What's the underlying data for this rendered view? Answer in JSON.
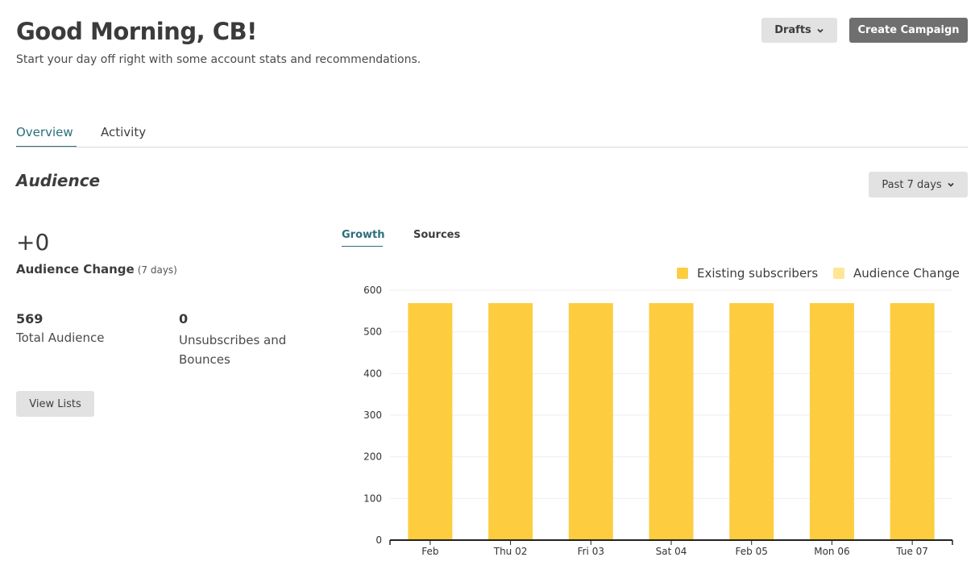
{
  "header": {
    "greeting": "Good Morning, CB!",
    "subtitle": "Start your day off right with some account stats and recommendations.",
    "drafts_label": "Drafts",
    "create_label": "Create Campaign"
  },
  "tabs": [
    {
      "label": "Overview",
      "active": true
    },
    {
      "label": "Activity",
      "active": false
    }
  ],
  "audience": {
    "section_title": "Audience",
    "range_label": "Past 7 days",
    "change_value": "+0",
    "change_label": "Audience Change",
    "change_period": "(7 days)",
    "total_value": "569",
    "total_label": "Total Audience",
    "unsub_value": "0",
    "unsub_label": "Unsubscribes and Bounces",
    "view_lists_label": "View Lists"
  },
  "chart_tabs": [
    {
      "label": "Growth",
      "active": true
    },
    {
      "label": "Sources",
      "active": false
    }
  ],
  "colors": {
    "existing": "#fdcd3f",
    "change": "#ffe696",
    "accent": "#2a6f7a"
  },
  "chart_data": {
    "type": "bar",
    "stacked": true,
    "categories": [
      "Feb",
      "Thu 02",
      "Fri 03",
      "Sat 04",
      "Feb 05",
      "Mon 06",
      "Tue 07"
    ],
    "series": [
      {
        "name": "Existing subscribers",
        "values": [
          569,
          569,
          569,
          569,
          569,
          569,
          569
        ]
      },
      {
        "name": "Audience Change",
        "values": [
          0,
          0,
          0,
          0,
          0,
          0,
          0
        ]
      }
    ],
    "ylim": [
      0,
      600
    ],
    "yticks": [
      0,
      100,
      200,
      300,
      400,
      500,
      600
    ],
    "grid": true,
    "legend": "top-right"
  }
}
